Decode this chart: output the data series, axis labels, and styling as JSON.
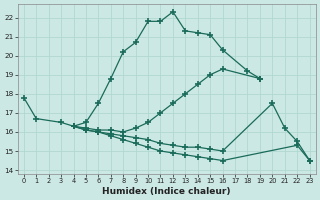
{
  "xlabel": "Humidex (Indice chaleur)",
  "bg_color": "#cce8e4",
  "grid_color": "#b0d8d0",
  "line_color": "#1a6b5a",
  "xlim": [
    -0.5,
    23.5
  ],
  "ylim": [
    13.8,
    22.7
  ],
  "yticks": [
    14,
    15,
    16,
    17,
    18,
    19,
    20,
    21,
    22
  ],
  "xticks": [
    0,
    1,
    2,
    3,
    4,
    5,
    6,
    7,
    8,
    9,
    10,
    11,
    12,
    13,
    14,
    15,
    16,
    17,
    18,
    19,
    20,
    21,
    22,
    23
  ],
  "lines": [
    {
      "x": [
        0,
        1,
        3,
        4,
        5,
        6,
        7,
        8,
        9,
        10,
        11,
        12,
        13,
        14,
        15,
        16,
        18,
        19
      ],
      "y": [
        17.8,
        16.7,
        16.5,
        16.3,
        16.5,
        17.5,
        18.8,
        20.2,
        20.7,
        21.8,
        21.8,
        22.3,
        21.3,
        21.2,
        21.1,
        20.3,
        19.2,
        18.8
      ]
    },
    {
      "x": [
        4,
        5,
        6,
        7,
        8,
        9,
        10,
        11,
        12,
        13,
        14,
        15,
        16,
        19
      ],
      "y": [
        16.3,
        16.2,
        16.1,
        16.1,
        16.0,
        16.2,
        16.5,
        17.0,
        17.5,
        18.0,
        18.5,
        19.0,
        19.3,
        18.8
      ]
    },
    {
      "x": [
        4,
        5,
        6,
        7,
        8,
        9,
        10,
        11,
        12,
        13,
        14,
        15,
        16,
        20,
        21,
        22,
        23
      ],
      "y": [
        16.3,
        16.1,
        16.0,
        15.9,
        15.8,
        15.7,
        15.6,
        15.4,
        15.3,
        15.2,
        15.2,
        15.1,
        15.0,
        17.5,
        16.2,
        15.5,
        14.5
      ]
    },
    {
      "x": [
        4,
        5,
        6,
        7,
        8,
        9,
        10,
        11,
        12,
        13,
        14,
        15,
        16,
        22,
        23
      ],
      "y": [
        16.3,
        16.1,
        16.0,
        15.8,
        15.6,
        15.4,
        15.2,
        15.0,
        14.9,
        14.8,
        14.7,
        14.6,
        14.5,
        15.3,
        14.5
      ]
    }
  ]
}
